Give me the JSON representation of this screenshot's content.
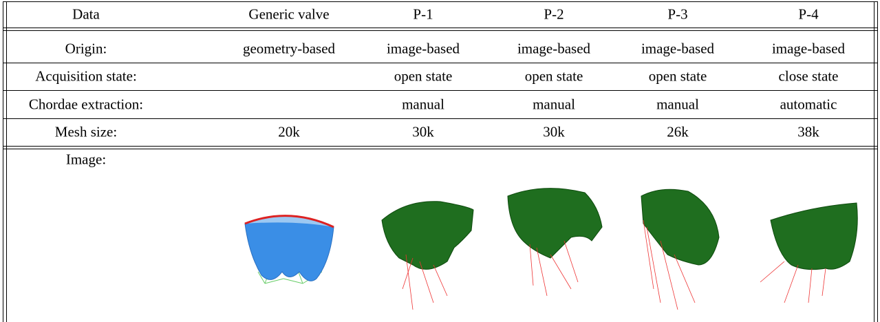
{
  "table": {
    "header": [
      "Data",
      "Generic valve",
      "P-1",
      "P-2",
      "P-3",
      "P-4"
    ],
    "rows": [
      [
        "Origin:",
        "geometry-based",
        "image-based",
        "image-based",
        "image-based",
        "image-based"
      ],
      [
        "Acquisition state:",
        null,
        "open state",
        "open state",
        "open state",
        "close state"
      ],
      [
        "Chordae extraction:",
        null,
        "manual",
        "manual",
        "manual",
        "automatic"
      ],
      [
        "Mesh size:",
        "20k",
        "30k",
        "30k",
        "26k",
        "38k"
      ],
      [
        "Image:",
        null,
        null,
        null,
        null,
        null
      ]
    ]
  }
}
